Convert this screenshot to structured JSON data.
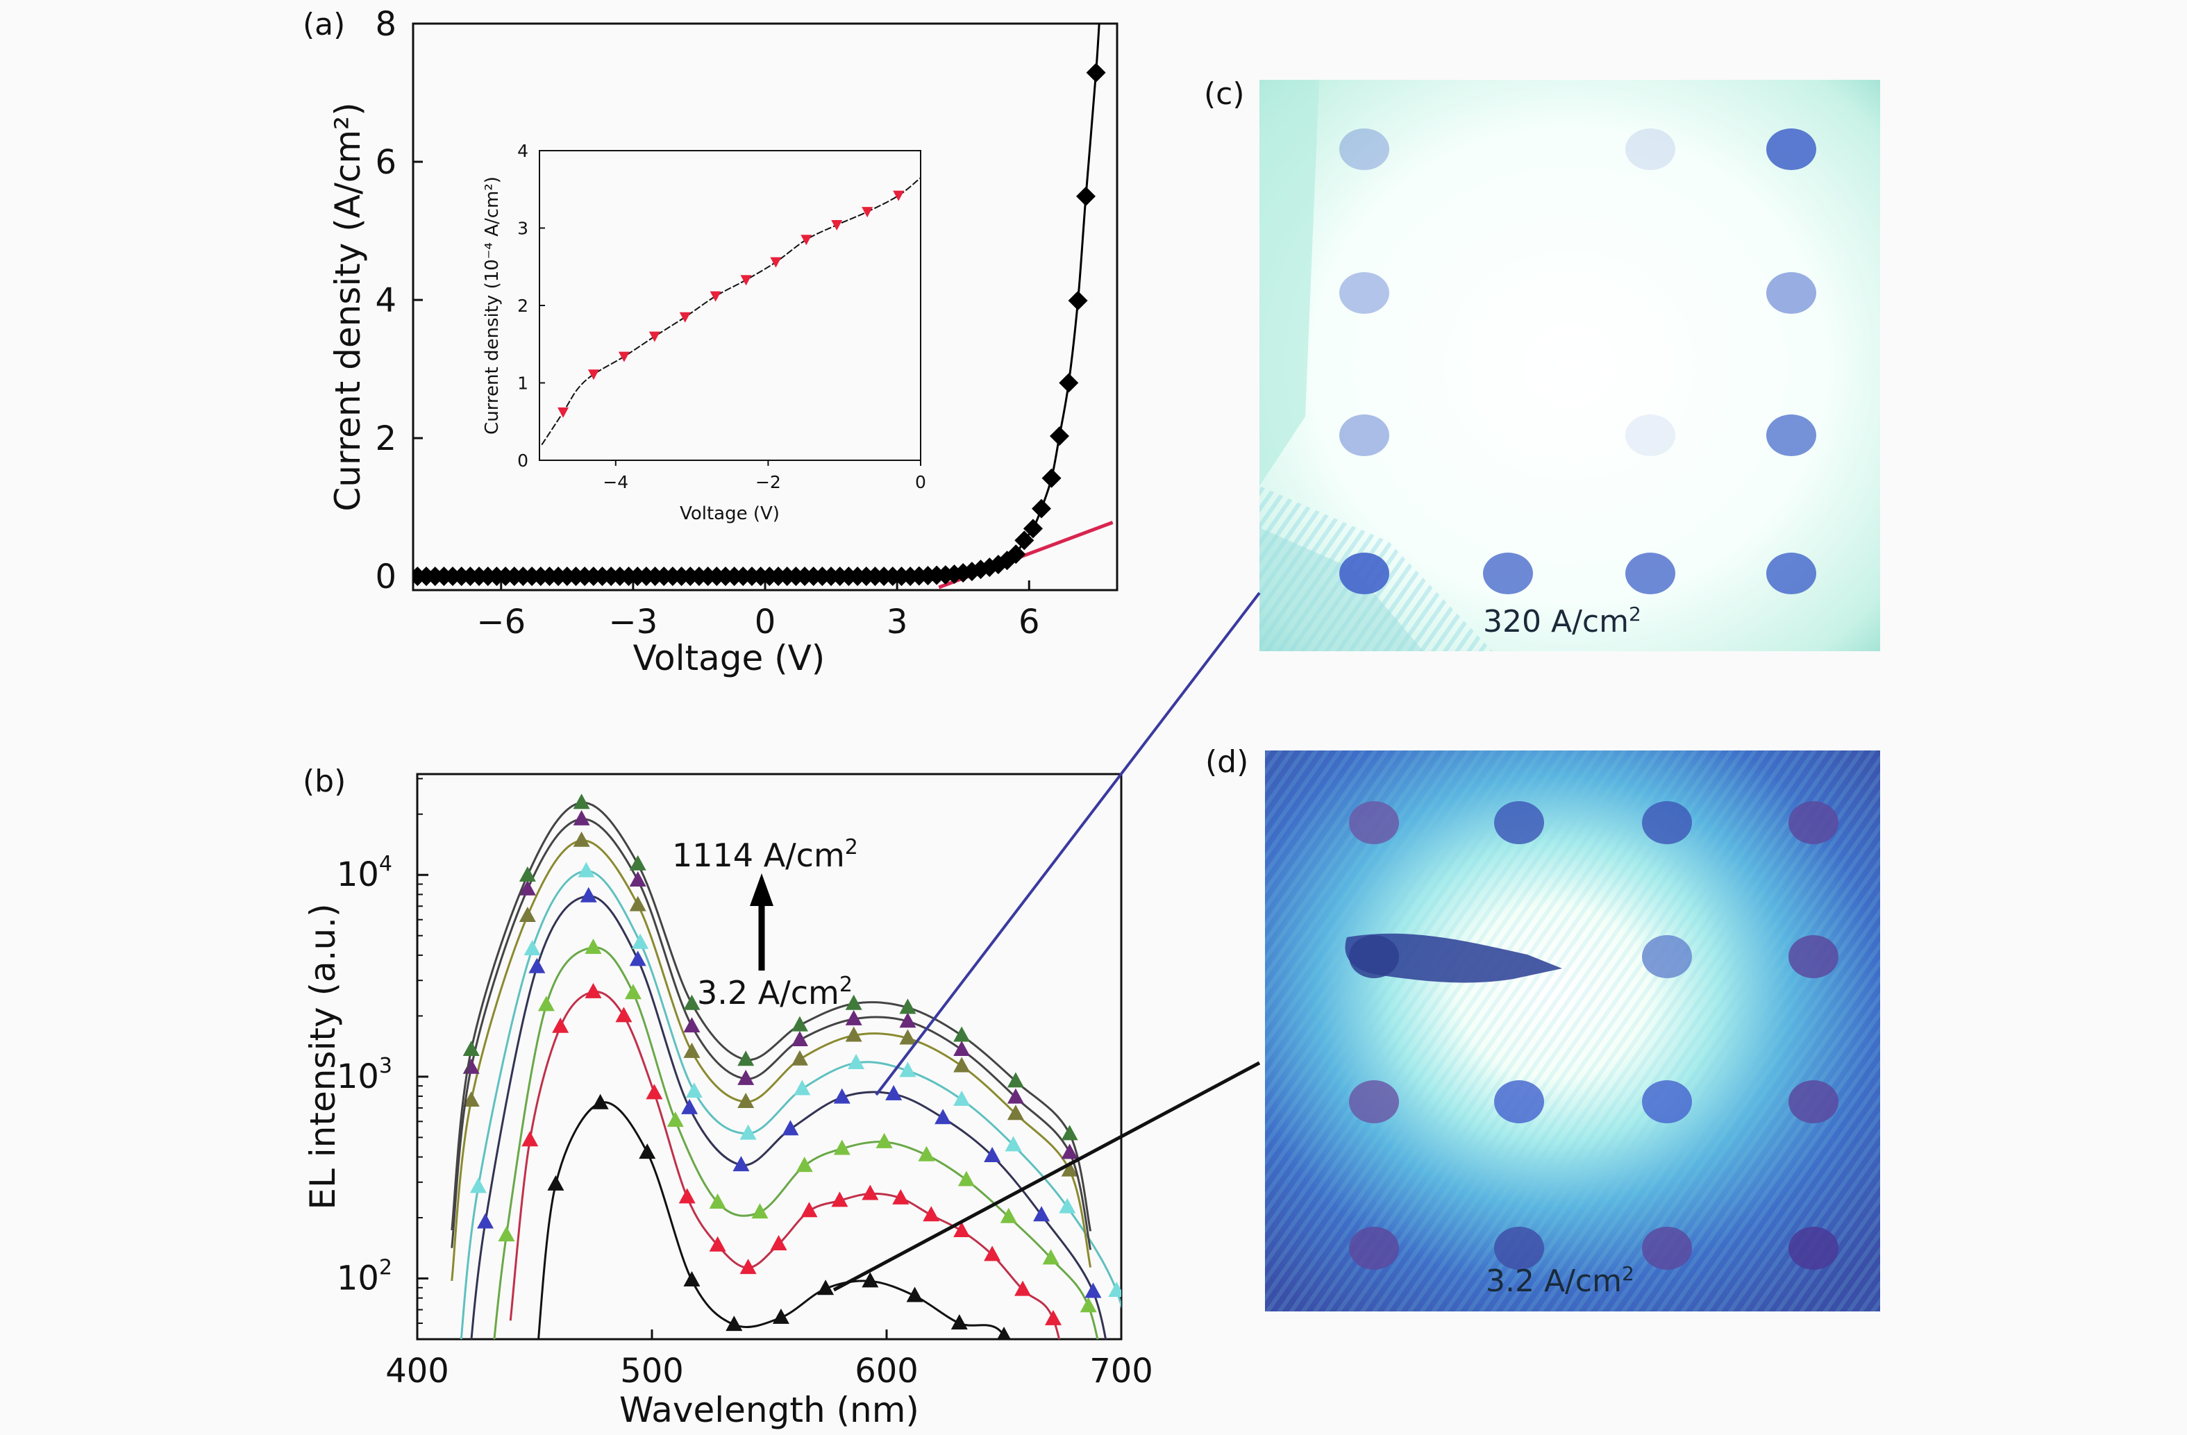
{
  "panel_labels": {
    "a": "(a)",
    "b": "(b)",
    "c": "(c)",
    "d": "(d)"
  },
  "chart_data": [
    {
      "id": "a",
      "type": "scatter",
      "xlabel": "Voltage (V)",
      "ylabel": "Current density (A/cm²)",
      "xlim": [
        -8,
        8
      ],
      "ylim": [
        -0.2,
        8
      ],
      "xticks": [
        -6,
        -3,
        0,
        3,
        6
      ],
      "xtick_labels": [
        "−6",
        "−3",
        "0",
        "3",
        "6"
      ],
      "yticks": [
        0,
        2,
        4,
        6,
        8
      ],
      "ytick_labels": [
        "0",
        "2",
        "4",
        "6",
        "8"
      ],
      "grid": false,
      "series": [
        {
          "marker": "diamond",
          "color": "#000000",
          "x": [
            -7.9,
            -7.7,
            -7.5,
            -7.3,
            -7.1,
            -6.9,
            -6.7,
            -6.5,
            -6.3,
            -6.1,
            -5.9,
            -5.7,
            -5.5,
            -5.3,
            -5.1,
            -4.9,
            -4.7,
            -4.5,
            -4.3,
            -4.1,
            -3.9,
            -3.7,
            -3.5,
            -3.3,
            -3.1,
            -2.9,
            -2.7,
            -2.5,
            -2.3,
            -2.1,
            -1.9,
            -1.7,
            -1.5,
            -1.3,
            -1.1,
            -0.9,
            -0.7,
            -0.5,
            -0.3,
            -0.1,
            0.1,
            0.3,
            0.5,
            0.7,
            0.9,
            1.1,
            1.3,
            1.5,
            1.7,
            1.9,
            2.1,
            2.3,
            2.5,
            2.7,
            2.9,
            3.1,
            3.3,
            3.5,
            3.7,
            3.9,
            4.1,
            4.3,
            4.5,
            4.7,
            4.9,
            5.1,
            5.3,
            5.5,
            5.7,
            5.89,
            6.09,
            6.28,
            6.51,
            6.69,
            6.9,
            7.11,
            7.29,
            7.52
          ],
          "y": [
            0,
            0,
            0,
            0,
            0,
            0,
            0,
            0,
            0,
            0,
            0,
            0,
            0,
            0,
            0,
            0,
            0,
            0,
            0,
            0,
            0,
            0,
            0,
            0,
            0,
            0,
            0,
            0,
            0,
            0,
            0,
            0,
            0,
            0,
            0,
            0,
            0,
            0,
            0,
            0,
            0,
            0,
            0,
            0,
            0,
            0,
            0,
            0,
            0,
            0,
            0,
            0,
            0,
            0,
            0,
            0,
            0,
            0.005,
            0.01,
            0.015,
            0.02,
            0.03,
            0.05,
            0.07,
            0.1,
            0.13,
            0.17,
            0.23,
            0.32,
            0.52,
            0.69,
            0.98,
            1.42,
            2.03,
            2.8,
            3.99,
            5.5,
            7.29
          ]
        }
      ],
      "fit_line": {
        "color": "#d8254f",
        "x": [
          3.95,
          7.9
        ],
        "y": [
          -0.16,
          0.78
        ]
      }
    },
    {
      "id": "a-inset",
      "type": "line",
      "xlabel": "Voltage (V)",
      "ylabel": "Current density (10⁻⁴ A/cm²)",
      "xlim": [
        -5,
        0
      ],
      "ylim": [
        0,
        4
      ],
      "xticks": [
        -4,
        -2,
        0
      ],
      "xtick_labels": [
        "−4",
        "−2",
        "0"
      ],
      "yticks": [
        0,
        1,
        2,
        3,
        4
      ],
      "ytick_labels": [
        "0",
        "1",
        "2",
        "3",
        "4"
      ],
      "series": [
        {
          "marker": "triangle-down",
          "color": "#e8203a",
          "line_x": [
            -4.97,
            -4.69,
            -4.5,
            -4.29,
            -3.89,
            -3.49,
            -3.09,
            -2.69,
            -2.29,
            -1.9,
            -1.5,
            -1.1,
            -0.7,
            -0.29,
            0
          ],
          "line_y": [
            0.2,
            0.62,
            0.92,
            1.11,
            1.34,
            1.6,
            1.85,
            2.12,
            2.33,
            2.56,
            2.85,
            3.04,
            3.21,
            3.42,
            3.65
          ],
          "x": [
            -4.69,
            -4.29,
            -3.89,
            -3.49,
            -3.09,
            -2.69,
            -2.29,
            -1.9,
            -1.5,
            -1.1,
            -0.7,
            -0.29
          ],
          "y": [
            0.62,
            1.11,
            1.34,
            1.6,
            1.85,
            2.12,
            2.33,
            2.56,
            2.85,
            3.04,
            3.21,
            3.42
          ]
        }
      ]
    },
    {
      "id": "b",
      "type": "line",
      "xlabel": "Wavelength (nm)",
      "ylabel": "EL intensity (a.u.)",
      "xlim": [
        400,
        700
      ],
      "ylim": [
        50,
        31600
      ],
      "yscale": "log",
      "xticks": [
        400,
        500,
        600,
        700
      ],
      "xtick_labels": [
        "400",
        "500",
        "600",
        "700"
      ],
      "yticks": [
        100,
        1000,
        10000
      ],
      "ytick_base": "10",
      "ytick_exps": [
        "2",
        "3",
        "4"
      ],
      "annotations": {
        "top": "1114 A/cm",
        "bottom": "3.2 A/cm",
        "sup": "2"
      },
      "series": [
        {
          "color": "#111111",
          "line": "#111111",
          "x": [
            459,
            478,
            498,
            517,
            535,
            555,
            574,
            593,
            612,
            631,
            650
          ],
          "y": [
            293,
            741,
            421,
            98,
            59,
            64,
            89,
            97,
            82,
            60,
            52
          ]
        },
        {
          "color": "#e8203a",
          "line": "#c0304a",
          "x": [
            448,
            461,
            475,
            488,
            501,
            515,
            528,
            541,
            554,
            567,
            580,
            593,
            606,
            619,
            632,
            645,
            658,
            671
          ],
          "y": [
            485,
            1770,
            2630,
            2000,
            830,
            253,
            146,
            113,
            148,
            216,
            243,
            263,
            250,
            206,
            172,
            131,
            88,
            63
          ]
        },
        {
          "color": "#7cc242",
          "line": "#6aa848",
          "x": [
            438,
            455,
            475,
            492,
            510,
            528,
            546,
            565,
            581,
            599,
            617,
            634,
            652,
            670,
            686
          ],
          "y": [
            164,
            2270,
            4360,
            2600,
            606,
            238,
            213,
            362,
            440,
            475,
            409,
            308,
            202,
            126,
            73
          ]
        },
        {
          "color": "#3a3fc0",
          "line": "#333355",
          "x": [
            429,
            451,
            473,
            494,
            516,
            538,
            559,
            581,
            603,
            624,
            645,
            666,
            688
          ],
          "y": [
            190,
            3500,
            7850,
            3800,
            700,
            365,
            550,
            790,
            820,
            625,
            405,
            206,
            86
          ]
        },
        {
          "color": "#78dcdc",
          "line": "#5fc0c0",
          "x": [
            426,
            449,
            472,
            495,
            518,
            541,
            564,
            587,
            609,
            632,
            654,
            677,
            698
          ],
          "y": [
            285,
            4290,
            10450,
            4620,
            845,
            523,
            870,
            1170,
            1070,
            770,
            458,
            226,
            87
          ]
        },
        {
          "color": "#7a7a3a",
          "line": "#8a8a30",
          "x": [
            423,
            447,
            470,
            494,
            517,
            540,
            563,
            586,
            609,
            632,
            655,
            678
          ],
          "y": [
            763,
            6280,
            14800,
            7100,
            1330,
            751,
            1220,
            1600,
            1550,
            1130,
            655,
            344
          ]
        },
        {
          "color": "#6a2a7a",
          "line": "#444444",
          "x": [
            423,
            447,
            470,
            494,
            517,
            540,
            563,
            586,
            609,
            632,
            655,
            678
          ],
          "y": [
            1110,
            8500,
            18900,
            9400,
            1780,
            976,
            1520,
            1930,
            1880,
            1360,
            790,
            420
          ]
        },
        {
          "color": "#3f7a3a",
          "line": "#444444",
          "x": [
            423,
            447,
            470,
            494,
            517,
            540,
            563,
            586,
            609,
            632,
            655,
            678
          ],
          "y": [
            1360,
            9950,
            22800,
            11300,
            2300,
            1215,
            1800,
            2300,
            2200,
            1600,
            950,
            520
          ]
        }
      ]
    }
  ],
  "images": {
    "c": {
      "caption": "320 A/cm",
      "sup": "2",
      "connector_color": "#3b3aa0"
    },
    "d": {
      "caption": "3.2 A/cm",
      "sup": "2",
      "connector_color": "#111111"
    }
  }
}
